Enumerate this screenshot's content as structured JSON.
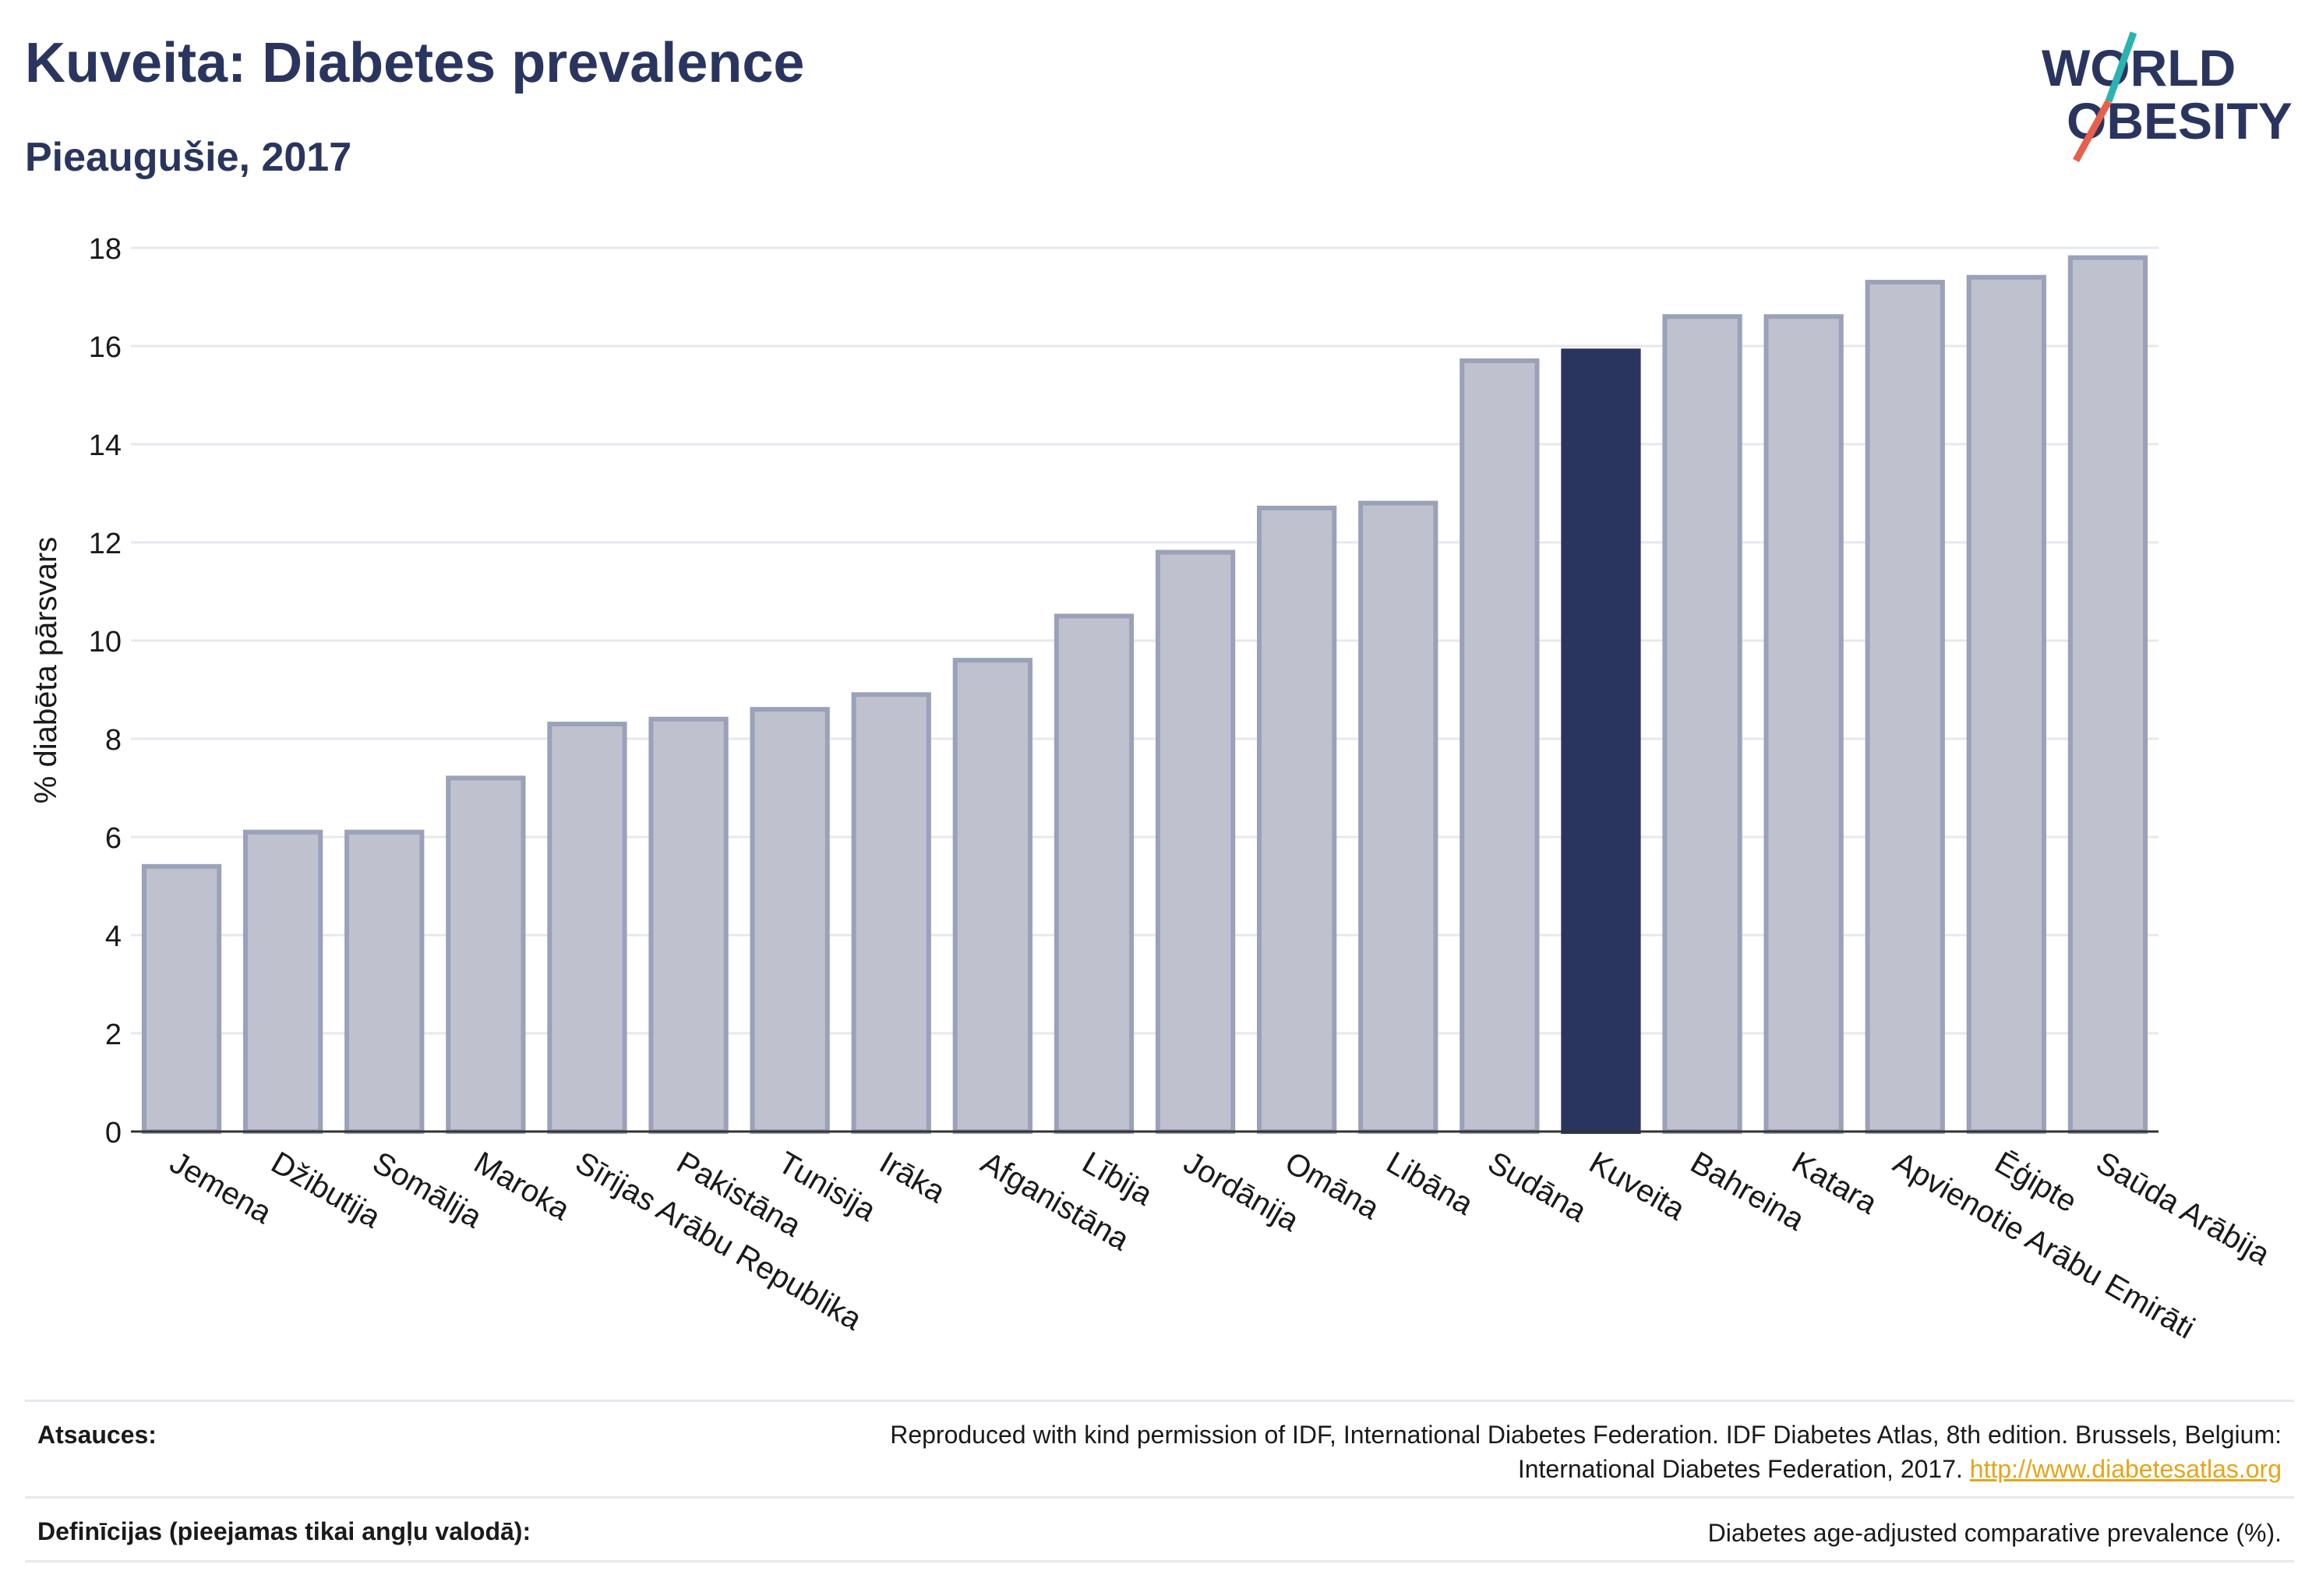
{
  "header": {
    "title": "Kuveita: Diabetes prevalence",
    "subtitle": "Pieaugušie, 2017"
  },
  "logo": {
    "line1": "WORLD",
    "line2": "OBESITY",
    "colors": {
      "text": "#2a355f",
      "slash_top": "#2ab3b1",
      "slash_bottom": "#e8604c"
    }
  },
  "chart_data": {
    "type": "bar",
    "ylabel": "% diabēta pārsvars",
    "xlabel": "",
    "ylim": [
      0,
      18
    ],
    "yticks": [
      0,
      2,
      4,
      6,
      8,
      10,
      12,
      14,
      16,
      18
    ],
    "grid": true,
    "highlight": "Kuveita",
    "colors": {
      "bar": "#bfc2ce",
      "bar_edge": "#9aa1b8",
      "highlight": "#2a355f",
      "grid": "#e6e8ef",
      "axis": "#333333"
    },
    "categories": [
      "Jemena",
      "Džibutija",
      "Somālija",
      "Maroka",
      "Sīrijas Arābu Republika",
      "Pakistāna",
      "Tunisija",
      "Irāka",
      "Afganistāna",
      "Lībija",
      "Jordānija",
      "Omāna",
      "Libāna",
      "Sudāna",
      "Kuveita",
      "Bahreina",
      "Katara",
      "Apvienotie Arābu Emirāti",
      "Ēģipte",
      "Saūda Arābija"
    ],
    "values": [
      5.4,
      6.1,
      6.1,
      7.2,
      8.3,
      8.4,
      8.6,
      8.9,
      9.6,
      10.5,
      11.8,
      12.7,
      12.8,
      15.7,
      15.9,
      16.6,
      16.6,
      17.3,
      17.4,
      17.8
    ]
  },
  "footer": {
    "sources_label": "Atsauces:",
    "sources_text_1": "Reproduced with kind permission of IDF, International Diabetes Federation. IDF Diabetes Atlas, 8th edition. Brussels, Belgium:",
    "sources_text_2": "International Diabetes Federation, 2017.",
    "sources_link": "http://www.diabetesatlas.org",
    "definitions_label": "Definīcijas (pieejamas tikai angļu valodā):",
    "definitions_text": "Diabetes age-adjusted comparative prevalence (%)."
  }
}
